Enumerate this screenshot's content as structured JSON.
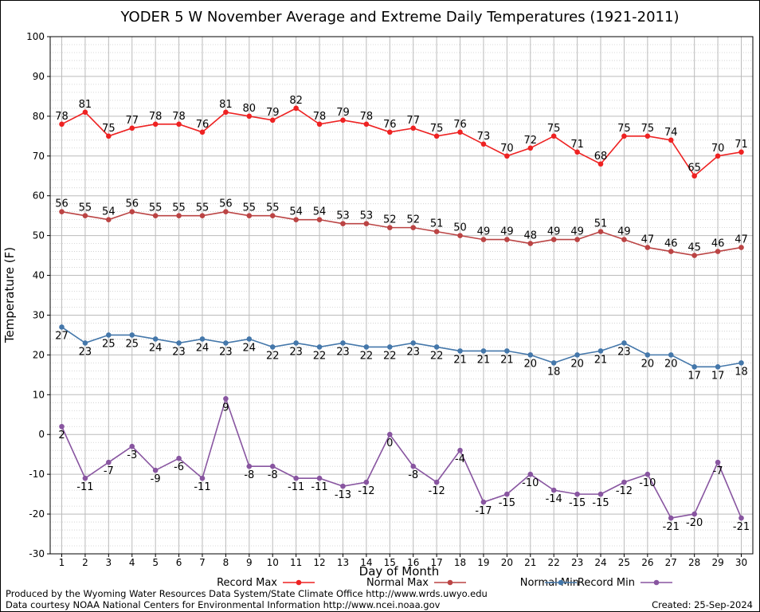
{
  "chart_data": {
    "type": "line",
    "title": "YODER 5 W November Average and Extreme Daily Temperatures (1921-2011)",
    "xlabel": "Day of Month",
    "ylabel": "Temperature (F)",
    "ylim": [
      -30,
      100
    ],
    "xlim": [
      1,
      30
    ],
    "y_ticks": [
      -30,
      -20,
      -10,
      0,
      10,
      20,
      30,
      40,
      50,
      60,
      70,
      80,
      90,
      100
    ],
    "x": [
      1,
      2,
      3,
      4,
      5,
      6,
      7,
      8,
      9,
      10,
      11,
      12,
      13,
      14,
      15,
      16,
      17,
      18,
      19,
      20,
      21,
      22,
      23,
      24,
      25,
      26,
      27,
      28,
      29,
      30
    ],
    "grid": true,
    "legend_position": "bottom",
    "series": [
      {
        "name": "Record Max",
        "color": "#ee2222",
        "label_pos": "above",
        "values": [
          78,
          81,
          75,
          77,
          78,
          78,
          76,
          81,
          80,
          79,
          82,
          78,
          79,
          78,
          76,
          77,
          75,
          76,
          73,
          70,
          72,
          75,
          71,
          68,
          75,
          75,
          74,
          65,
          70,
          71
        ]
      },
      {
        "name": "Normal Max",
        "color": "#bb4444",
        "label_pos": "above",
        "values": [
          56,
          55,
          54,
          56,
          55,
          55,
          55,
          56,
          55,
          55,
          54,
          54,
          53,
          53,
          52,
          52,
          51,
          50,
          49,
          49,
          48,
          49,
          49,
          51,
          49,
          47,
          46,
          45,
          46,
          47
        ]
      },
      {
        "name": "Normal Min",
        "color": "#4477aa",
        "label_pos": "below",
        "values": [
          27,
          23,
          25,
          25,
          24,
          23,
          24,
          23,
          24,
          22,
          23,
          22,
          23,
          22,
          22,
          23,
          22,
          21,
          21,
          21,
          20,
          18,
          20,
          21,
          23,
          20,
          20,
          17,
          17,
          18
        ]
      },
      {
        "name": "Record Min",
        "color": "#8855a0",
        "label_pos": "below",
        "values": [
          2,
          -11,
          -7,
          -3,
          -9,
          -6,
          -11,
          9,
          -8,
          -8,
          -11,
          -11,
          -13,
          -12,
          0,
          -8,
          -12,
          -4,
          -17,
          -15,
          -10,
          -14,
          -15,
          -15,
          -12,
          -10,
          -21,
          -20,
          -7,
          -21
        ]
      }
    ]
  },
  "footer": {
    "produced_by": "Produced by the Wyoming Water Resources Data System/State Climate Office http://www.wrds.uwyo.edu",
    "courtesy": "Data courtesy NOAA National Centers for Environmental Information http://www.ncei.noaa.gov",
    "created": "Created:  25-Sep-2024"
  }
}
